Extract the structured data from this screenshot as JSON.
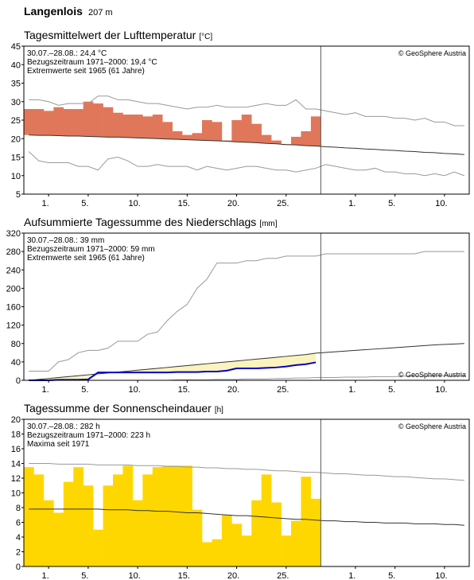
{
  "header": {
    "title": "Langenlois",
    "elevation": "207 m"
  },
  "chart_data": [
    {
      "type": "difference",
      "title": "Tagesmittelwert der Lufttemperatur",
      "unit": "[°C]",
      "notes": [
        "30.07.–28.08.: 24,4 °C",
        "Bezugszeitraum 1971–2000: 19,4 °C",
        "Extremwerte seit 1965 (61 Jahre)"
      ],
      "copyright": "© GeoSphere Austria",
      "copyright_position": "top-right",
      "categories": [
        null,
        null,
        "1.",
        null,
        null,
        null,
        "5.",
        null,
        null,
        null,
        null,
        "10.",
        null,
        null,
        null,
        null,
        "15.",
        null,
        null,
        null,
        null,
        "20.",
        null,
        null,
        null,
        null,
        "25.",
        null,
        null,
        null,
        null,
        null,
        null,
        "1.",
        null,
        null,
        null,
        "5.",
        null,
        null,
        null,
        null,
        "10.",
        null,
        null
      ],
      "ylim": [
        5,
        45
      ],
      "yticks": [
        5,
        10,
        15,
        20,
        25,
        30,
        35,
        40,
        45
      ],
      "series": [
        {
          "kind": "bar",
          "color": "#e0775a",
          "values": [
            28,
            28,
            27.5,
            28.5,
            28,
            28,
            30,
            29.5,
            28.5,
            27,
            26.5,
            26.5,
            26,
            26.5,
            24.5,
            22,
            21,
            21.5,
            25,
            24.5,
            19.5,
            25,
            26.5,
            24,
            21,
            19.5,
            18.5,
            20.5,
            22,
            26,
            null,
            null,
            null,
            null,
            null,
            null,
            null,
            null,
            null,
            null,
            null,
            null,
            null,
            null,
            null
          ]
        },
        {
          "kind": "line",
          "color": "#333333",
          "values": [
            21.0,
            20.9,
            20.9,
            20.8,
            20.7,
            20.7,
            20.6,
            20.5,
            20.4,
            20.4,
            20.3,
            20.2,
            20.1,
            20.0,
            19.9,
            19.8,
            19.7,
            19.6,
            19.5,
            19.4,
            19.3,
            19.1,
            19.0,
            18.9,
            18.7,
            18.6,
            18.4,
            18.3,
            18.1,
            18.0,
            17.8,
            17.7,
            17.5,
            17.4,
            17.2,
            17.1,
            16.9,
            16.8,
            16.6,
            16.5,
            16.3,
            16.2,
            16.0,
            15.9,
            15.7
          ]
        },
        {
          "kind": "line",
          "color": "#999999",
          "values": [
            30.5,
            30.5,
            30,
            29,
            29.5,
            29.5,
            29.5,
            31.5,
            31.5,
            30.5,
            30.5,
            30,
            29.5,
            29.5,
            29,
            28.5,
            28,
            28.5,
            28.5,
            29,
            28.5,
            28.5,
            28.5,
            29,
            29.5,
            29,
            29,
            30.5,
            28,
            28,
            27.5,
            27,
            26.5,
            27,
            26,
            26,
            26,
            25.5,
            25.5,
            25,
            25.5,
            24.5,
            24.5,
            23.5,
            23.5
          ]
        },
        {
          "kind": "line",
          "color": "#999999",
          "values": [
            16.5,
            14,
            13.5,
            13.5,
            13.5,
            12.5,
            12.5,
            11.5,
            14.5,
            15,
            14,
            12.5,
            12.5,
            13,
            12.5,
            12.5,
            12.5,
            11.5,
            12.5,
            12,
            11.5,
            12,
            12.5,
            12.5,
            12,
            11.5,
            11.5,
            11,
            11.5,
            12,
            13,
            12.5,
            12,
            11.5,
            11.5,
            12,
            11,
            11,
            10.5,
            10.5,
            10,
            10.5,
            10,
            11,
            10
          ]
        }
      ]
    },
    {
      "type": "area",
      "title": "Aufsummierte Tagessumme des Niederschlags",
      "unit": "[mm]",
      "notes": [
        "30.07.–28.08.: 39 mm",
        "Bezugszeitraum 1971–2000: 59 mm",
        "Extremwerte seit 1965 (61 Jahre)"
      ],
      "copyright": "© GeoSphere Austria",
      "copyright_position": "bottom-right",
      "categories": [
        null,
        null,
        "1.",
        null,
        null,
        null,
        "5.",
        null,
        null,
        null,
        null,
        "10.",
        null,
        null,
        null,
        null,
        "15.",
        null,
        null,
        null,
        null,
        "20.",
        null,
        null,
        null,
        null,
        "25.",
        null,
        null,
        null,
        null,
        null,
        null,
        "1.",
        null,
        null,
        null,
        "5.",
        null,
        null,
        null,
        null,
        "10.",
        null,
        null
      ],
      "ylim": [
        0,
        320
      ],
      "yticks": [
        0,
        40,
        80,
        120,
        160,
        200,
        240,
        280,
        320
      ],
      "series": [
        {
          "kind": "line",
          "color": "#0000cc",
          "fill": "#fbf3bd",
          "values": [
            0,
            0,
            0,
            1,
            1,
            1,
            2,
            17,
            17,
            17,
            17,
            17,
            17,
            17,
            17,
            18,
            18,
            18,
            19,
            19,
            21,
            26,
            26,
            26,
            27,
            28,
            30,
            33,
            35,
            39,
            null,
            null,
            null,
            null,
            null,
            null,
            null,
            null,
            null,
            null,
            null,
            null,
            null,
            null,
            null
          ]
        },
        {
          "kind": "line",
          "color": "#333333",
          "values": [
            0,
            2,
            4,
            6,
            8,
            10,
            12,
            14,
            16,
            18,
            20,
            22,
            24,
            26,
            28,
            30,
            32,
            34,
            36,
            38,
            40,
            42,
            44,
            46,
            48,
            50,
            52,
            54,
            56,
            59,
            60.5,
            62,
            63.5,
            65,
            66.5,
            68,
            69.5,
            71,
            72.5,
            74,
            75.5,
            77,
            78,
            79,
            80
          ]
        },
        {
          "kind": "line",
          "color": "#999999",
          "values": [
            20,
            20,
            20,
            40,
            45,
            60,
            65,
            65,
            70,
            85,
            85,
            85,
            100,
            105,
            130,
            150,
            165,
            200,
            220,
            255,
            255,
            255,
            260,
            260,
            265,
            265,
            270,
            270,
            270,
            270,
            275,
            275,
            275,
            275,
            275,
            275,
            275,
            275,
            275,
            275,
            280,
            280,
            280,
            280,
            280
          ]
        },
        {
          "kind": "line",
          "color": "#999999",
          "values": [
            0,
            0,
            0,
            0,
            0,
            0,
            0,
            0,
            0,
            0,
            0,
            0,
            0,
            0,
            0,
            1,
            1,
            1,
            1,
            2,
            2,
            2,
            3,
            3,
            3,
            4,
            4,
            5,
            5,
            6,
            6,
            6,
            7,
            7,
            7,
            8,
            8,
            8,
            9,
            9,
            9,
            10,
            10,
            10,
            10
          ]
        }
      ]
    },
    {
      "type": "bar",
      "title": "Tagessumme der Sonnenscheindauer",
      "unit": "[h]",
      "notes": [
        "30.07.–28.08.: 282 h",
        "Bezugszeitraum 1971–2000: 223 h",
        "Maxima seit 1971"
      ],
      "copyright": "© GeoSphere Austria",
      "copyright_position": "top-right",
      "categories": [
        null,
        null,
        "1.",
        null,
        null,
        null,
        "5.",
        null,
        null,
        null,
        null,
        "10.",
        null,
        null,
        null,
        null,
        "15.",
        null,
        null,
        null,
        null,
        "20.",
        null,
        null,
        null,
        null,
        "25.",
        null,
        null,
        null,
        null,
        null,
        null,
        "1.",
        null,
        null,
        null,
        "5.",
        null,
        null,
        null,
        null,
        "10.",
        null,
        null
      ],
      "ylim": [
        0,
        20
      ],
      "yticks": [
        0,
        2,
        4,
        6,
        8,
        10,
        12,
        14,
        16,
        18,
        20
      ],
      "series": [
        {
          "kind": "bar",
          "color": "#ffd700",
          "values": [
            13.5,
            12.5,
            9,
            7.3,
            11.5,
            13.5,
            11,
            5,
            11,
            12.5,
            13.7,
            9,
            12.5,
            13.5,
            13.7,
            13.7,
            13.7,
            7.7,
            3.3,
            3.7,
            7,
            5.8,
            4.2,
            9,
            12.5,
            8.7,
            4.2,
            6.2,
            12.2,
            9.2,
            null,
            null,
            null,
            null,
            null,
            null,
            null,
            null,
            null,
            null,
            null,
            null,
            null,
            null,
            null
          ]
        },
        {
          "kind": "line",
          "color": "#333333",
          "values": [
            7.8,
            7.8,
            7.8,
            7.8,
            7.8,
            7.8,
            7.8,
            7.8,
            7.7,
            7.7,
            7.7,
            7.6,
            7.6,
            7.5,
            7.5,
            7.4,
            7.3,
            7.3,
            7.2,
            7.1,
            7.0,
            6.9,
            6.9,
            6.8,
            6.7,
            6.6,
            6.5,
            6.4,
            6.4,
            6.3,
            6.2,
            6.2,
            6.1,
            6.1,
            6.0,
            6.0,
            5.9,
            5.9,
            5.9,
            5.8,
            5.8,
            5.8,
            5.7,
            5.7,
            5.6
          ]
        },
        {
          "kind": "line",
          "color": "#999999",
          "values": [
            14.0,
            14.0,
            14.0,
            13.9,
            13.9,
            13.9,
            13.9,
            13.8,
            13.8,
            13.8,
            13.8,
            13.7,
            13.7,
            13.7,
            13.6,
            13.6,
            13.5,
            13.5,
            13.4,
            13.4,
            13.3,
            13.3,
            13.2,
            13.2,
            13.1,
            13.0,
            13.0,
            12.9,
            12.8,
            12.8,
            12.7,
            12.6,
            12.6,
            12.5,
            12.4,
            12.4,
            12.3,
            12.2,
            12.2,
            12.1,
            12.0,
            11.9,
            11.9,
            11.8,
            11.7
          ]
        }
      ]
    }
  ]
}
